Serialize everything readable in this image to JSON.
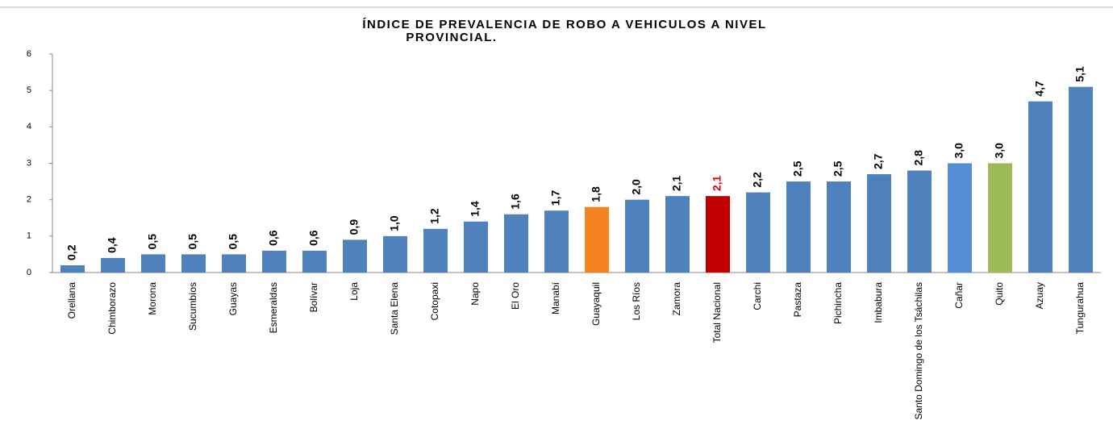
{
  "chart_data": {
    "type": "bar",
    "title": [
      "ÍNDICE DE PREVALENCIA DE ROBO A VEHICULOS A NIVEL",
      "PROVINCIAL."
    ],
    "categories": [
      "Orellana",
      "Chimborazo",
      "Morona",
      "Sucumbíos",
      "Guayas",
      "Esmeraldas",
      "Bolívar",
      "Loja",
      "Santa Elena",
      "Cotopaxi",
      "Napo",
      "El Oro",
      "Manabí",
      "Guayaquil",
      "Los Ríos",
      "Zamora",
      "Total Nacional",
      "Carchi",
      "Pastaza",
      "Pichincha",
      "Imbabura",
      "Santo Domingo de los Tsáchilas",
      "Cañar",
      "Quito",
      "Azuay",
      "Tungurahua"
    ],
    "values": [
      0.2,
      0.4,
      0.5,
      0.5,
      0.5,
      0.6,
      0.6,
      0.9,
      1.0,
      1.2,
      1.4,
      1.6,
      1.7,
      1.8,
      2.0,
      2.1,
      2.1,
      2.2,
      2.5,
      2.5,
      2.7,
      2.8,
      3.0,
      3.0,
      4.7,
      5.1
    ],
    "value_labels": [
      "0,2",
      "0,4",
      "0,5",
      "0,5",
      "0,5",
      "0,6",
      "0,6",
      "0,9",
      "1,0",
      "1,2",
      "1,4",
      "1,6",
      "1,7",
      "1,8",
      "2,0",
      "2,1",
      "2,1",
      "2,2",
      "2,5",
      "2,5",
      "2,7",
      "2,8",
      "3,0",
      "3,0",
      "4,7",
      "5,1"
    ],
    "colors": [
      "#4f81bd",
      "#4f81bd",
      "#4f81bd",
      "#4f81bd",
      "#4f81bd",
      "#4f81bd",
      "#4f81bd",
      "#4f81bd",
      "#4f81bd",
      "#4f81bd",
      "#4f81bd",
      "#4f81bd",
      "#4f81bd",
      "#f58220",
      "#4f81bd",
      "#4f81bd",
      "#c00000",
      "#4f81bd",
      "#4f81bd",
      "#4f81bd",
      "#4f81bd",
      "#4f81bd",
      "#558ed5",
      "#9bbb59",
      "#4f81bd",
      "#4f81bd"
    ],
    "value_label_colors": [
      "#000",
      "#000",
      "#000",
      "#000",
      "#000",
      "#000",
      "#000",
      "#000",
      "#000",
      "#000",
      "#000",
      "#000",
      "#000",
      "#000",
      "#000",
      "#000",
      "#e00000",
      "#000",
      "#000",
      "#000",
      "#000",
      "#000",
      "#000",
      "#000",
      "#000",
      "#000"
    ],
    "ylim": [
      0,
      6
    ],
    "yticks": [
      0,
      1,
      2,
      3,
      4,
      5,
      6
    ],
    "grid": false
  }
}
